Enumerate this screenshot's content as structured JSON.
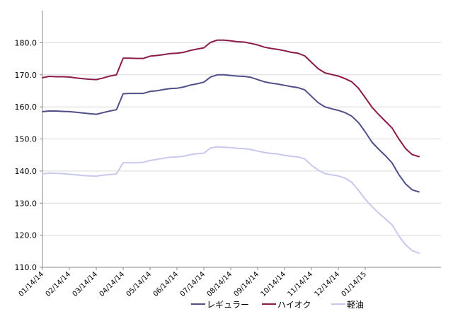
{
  "chart_data": {
    "type": "line",
    "title": "",
    "xlabel": "",
    "ylabel": "",
    "ylim": [
      110,
      190
    ],
    "yticks": [
      110,
      120,
      130,
      140,
      150,
      160,
      170,
      180
    ],
    "ytick_labels": [
      "110.0",
      "120.0",
      "130.0",
      "140.0",
      "150.0",
      "160.0",
      "170.0",
      "180.0"
    ],
    "xlim": [
      0,
      60
    ],
    "xticks": [
      {
        "x": 0,
        "label": "01/14/14"
      },
      {
        "x": 4,
        "label": "02/14/14"
      },
      {
        "x": 8,
        "label": "03/14/14"
      },
      {
        "x": 12,
        "label": "04/14/14"
      },
      {
        "x": 16,
        "label": "05/14/14"
      },
      {
        "x": 20,
        "label": "06/14/14"
      },
      {
        "x": 24,
        "label": "07/14/14"
      },
      {
        "x": 28,
        "label": "08/14/14"
      },
      {
        "x": 32,
        "label": "09/14/14"
      },
      {
        "x": 36,
        "label": "10/14/14"
      },
      {
        "x": 40,
        "label": "11/14/14"
      },
      {
        "x": 44,
        "label": "12/14/14"
      },
      {
        "x": 48,
        "label": "01/14/15"
      }
    ],
    "grid": {
      "horizontal": true,
      "vertical": false
    },
    "legend_position": "bottom-right",
    "series": [
      {
        "name": "レギュラー",
        "color": "#4f4f8a",
        "x": [
          0,
          1,
          2,
          3,
          4,
          5,
          6,
          7,
          8,
          9,
          10,
          11,
          12,
          13,
          14,
          15,
          16,
          17,
          18,
          19,
          20,
          21,
          22,
          23,
          24,
          25,
          26,
          27,
          28,
          29,
          30,
          31,
          32,
          33,
          34,
          35,
          36,
          37,
          38,
          39,
          40,
          41,
          42,
          43,
          44,
          45,
          46,
          47,
          48,
          49,
          50,
          51,
          52,
          53,
          54,
          55,
          56
        ],
        "values": [
          158.5,
          158.7,
          158.7,
          158.6,
          158.5,
          158.3,
          158.1,
          157.9,
          157.7,
          158.2,
          158.7,
          159.1,
          164.1,
          164.2,
          164.2,
          164.2,
          164.8,
          165.0,
          165.4,
          165.7,
          165.8,
          166.2,
          166.8,
          167.2,
          167.7,
          169.3,
          170.0,
          170.0,
          169.8,
          169.6,
          169.5,
          169.2,
          168.5,
          167.8,
          167.4,
          167.1,
          166.7,
          166.3,
          166.0,
          165.3,
          163.3,
          161.3,
          160.0,
          159.4,
          158.9,
          158.2,
          157.1,
          155.1,
          152.2,
          149.0,
          146.8,
          144.8,
          142.5,
          138.9,
          136.0,
          134.1,
          133.5
        ]
      },
      {
        "name": "ハイオク",
        "color": "#8b1a4a",
        "x": [
          0,
          1,
          2,
          3,
          4,
          5,
          6,
          7,
          8,
          9,
          10,
          11,
          12,
          13,
          14,
          15,
          16,
          17,
          18,
          19,
          20,
          21,
          22,
          23,
          24,
          25,
          26,
          27,
          28,
          29,
          30,
          31,
          32,
          33,
          34,
          35,
          36,
          37,
          38,
          39,
          40,
          41,
          42,
          43,
          44,
          45,
          46,
          47,
          48,
          49,
          50,
          51,
          52,
          53,
          54,
          55,
          56
        ],
        "values": [
          169.1,
          169.5,
          169.4,
          169.4,
          169.3,
          169.0,
          168.8,
          168.6,
          168.5,
          169.0,
          169.6,
          170.0,
          175.2,
          175.2,
          175.1,
          175.1,
          175.8,
          176.0,
          176.3,
          176.6,
          176.7,
          177.0,
          177.6,
          178.0,
          178.4,
          180.1,
          180.8,
          180.8,
          180.6,
          180.3,
          180.2,
          179.8,
          179.3,
          178.6,
          178.2,
          177.9,
          177.5,
          177.0,
          176.7,
          175.9,
          173.9,
          171.9,
          170.6,
          170.1,
          169.6,
          168.8,
          167.8,
          165.8,
          162.9,
          159.9,
          157.6,
          155.5,
          153.4,
          150.0,
          147.0,
          145.1,
          144.5
        ]
      },
      {
        "name": "軽油",
        "color": "#c8c8ee",
        "x": [
          0,
          1,
          2,
          3,
          4,
          5,
          6,
          7,
          8,
          9,
          10,
          11,
          12,
          13,
          14,
          15,
          16,
          17,
          18,
          19,
          20,
          21,
          22,
          23,
          24,
          25,
          26,
          27,
          28,
          29,
          30,
          31,
          32,
          33,
          34,
          35,
          36,
          37,
          38,
          39,
          40,
          41,
          42,
          43,
          44,
          45,
          46,
          47,
          48,
          49,
          50,
          51,
          52,
          53,
          54,
          55,
          56
        ],
        "values": [
          139.1,
          139.4,
          139.3,
          139.2,
          139.0,
          138.8,
          138.6,
          138.5,
          138.4,
          138.7,
          138.9,
          139.1,
          142.6,
          142.6,
          142.6,
          142.7,
          143.3,
          143.6,
          144.0,
          144.3,
          144.4,
          144.6,
          145.1,
          145.4,
          145.6,
          147.2,
          147.5,
          147.4,
          147.3,
          147.1,
          147.0,
          146.7,
          146.2,
          145.8,
          145.5,
          145.3,
          144.9,
          144.6,
          144.4,
          143.8,
          141.8,
          140.3,
          139.2,
          138.8,
          138.5,
          137.8,
          136.5,
          134.0,
          131.2,
          128.9,
          126.9,
          125.1,
          123.2,
          119.8,
          117.0,
          115.2,
          114.4
        ]
      }
    ]
  }
}
